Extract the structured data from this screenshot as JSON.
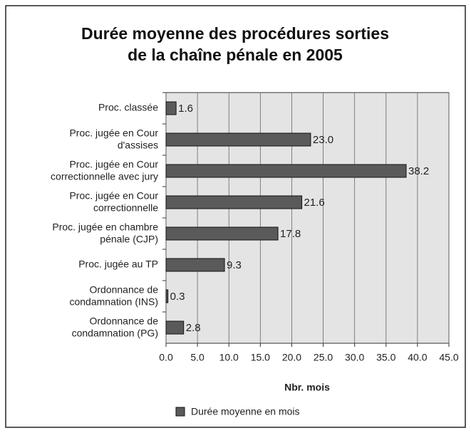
{
  "chart_data": {
    "type": "bar",
    "orientation": "horizontal",
    "title": "Durée moyenne des procédures sorties\nde la chaîne pénale en 2005",
    "categories": [
      "Proc. classée",
      "Proc. jugée en Cour\nd'assises",
      "Proc. jugée en Cour\ncorrectionnelle avec jury",
      "Proc. jugée en Cour\ncorrectionnelle",
      "Proc. jugée en chambre\npénale (CJP)",
      "Proc. jugée au TP",
      "Ordonnance de\ncondamnation (INS)",
      "Ordonnance de\ncondamnation (PG)"
    ],
    "series": [
      {
        "name": "Durée moyenne en mois",
        "color": "#5a5a5a",
        "values": [
          1.6,
          23.0,
          38.2,
          21.6,
          17.8,
          9.3,
          0.3,
          2.8
        ],
        "value_labels": [
          "1.6",
          "23.0",
          "38.2",
          "21.6",
          "17.8",
          "9.3",
          "0.3",
          "2.8"
        ]
      }
    ],
    "xlabel": "Nbr. mois",
    "xlim": [
      0,
      45
    ],
    "xticks": [
      {
        "value": 0,
        "label": "0.0"
      },
      {
        "value": 5,
        "label": "5.0"
      },
      {
        "value": 10,
        "label": "10.0"
      },
      {
        "value": 15,
        "label": "15.0"
      },
      {
        "value": 20,
        "label": "20.0"
      },
      {
        "value": 25,
        "label": "25.0"
      },
      {
        "value": 30,
        "label": "30.0"
      },
      {
        "value": 35,
        "label": "35.0"
      },
      {
        "value": 40,
        "label": "40.0"
      },
      {
        "value": 45,
        "label": "45.0"
      }
    ],
    "grid": true,
    "legend": "bottom"
  }
}
